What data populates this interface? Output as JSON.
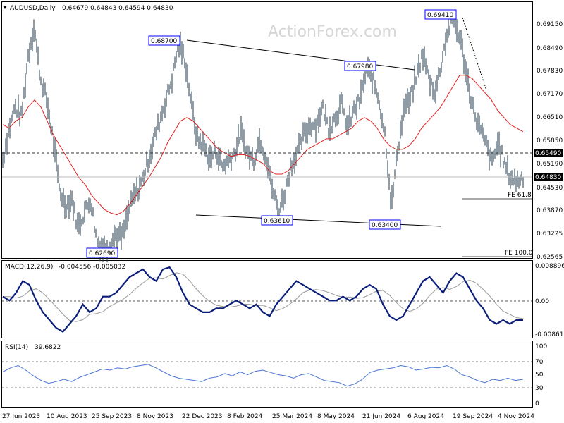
{
  "header": {
    "symbol": "AUDUSD,Daily",
    "ohlc": "0.64679 0.64843 0.64594 0.64830",
    "watermark": "ActionForex.com"
  },
  "chart_data": [
    {
      "type": "line",
      "panel": "price",
      "series": [
        {
          "values": [
            0.653,
            0.662,
            0.668,
            0.665,
            0.682,
            0.691,
            0.676,
            0.67,
            0.659,
            0.645,
            0.64,
            0.642,
            0.634,
            0.638,
            0.642,
            0.63,
            0.628,
            0.629,
            0.632,
            0.631,
            0.638,
            0.643,
            0.646,
            0.652,
            0.658,
            0.664,
            0.67,
            0.676,
            0.686,
            0.682,
            0.67,
            0.659,
            0.657,
            0.653,
            0.656,
            0.651,
            0.653,
            0.655,
            0.661,
            0.655,
            0.653,
            0.659,
            0.654,
            0.645,
            0.638,
            0.644,
            0.652,
            0.655,
            0.66,
            0.663,
            0.663,
            0.668,
            0.662,
            0.665,
            0.669,
            0.662,
            0.667,
            0.67,
            0.679,
            0.676,
            0.67,
            0.66,
            0.64,
            0.656,
            0.668,
            0.67,
            0.677,
            0.683,
            0.676,
            0.672,
            0.681,
            0.69,
            0.692,
            0.687,
            0.677,
            0.668,
            0.662,
            0.658,
            0.652,
            0.658,
            0.652,
            0.648,
            0.647,
            0.6483
          ]
        },
        {
          "values": [
            0.663,
            0.662,
            0.664,
            0.665,
            0.668,
            0.67,
            0.668,
            0.664,
            0.66,
            0.657,
            0.654,
            0.651,
            0.648,
            0.646,
            0.643,
            0.641,
            0.639,
            0.638,
            0.6375,
            0.6385,
            0.6405,
            0.643,
            0.6455,
            0.648,
            0.651,
            0.654,
            0.658,
            0.661,
            0.664,
            0.665,
            0.664,
            0.662,
            0.66,
            0.658,
            0.656,
            0.655,
            0.654,
            0.6545,
            0.6545,
            0.654,
            0.653,
            0.652,
            0.65,
            0.649,
            0.649,
            0.65,
            0.652,
            0.654,
            0.656,
            0.657,
            0.658,
            0.659,
            0.659,
            0.66,
            0.661,
            0.662,
            0.664,
            0.665,
            0.664,
            0.662,
            0.659,
            0.657,
            0.656,
            0.656,
            0.657,
            0.659,
            0.662,
            0.664,
            0.666,
            0.668,
            0.671,
            0.674,
            0.677,
            0.677,
            0.676,
            0.674,
            0.672,
            0.67,
            0.667,
            0.665,
            0.663,
            0.662,
            0.661
          ]
        }
      ],
      "ylim": [
        0.625,
        0.695
      ],
      "yticks": [
        "0.69150",
        "0.68490",
        "0.67830",
        "0.67170",
        "0.66510",
        "0.65850",
        "0.65190",
        "0.64530",
        "0.63870",
        "0.63225",
        "0.62565"
      ],
      "annotations": [
        "0.68700",
        "0.67980",
        "0.69410",
        "0.63610",
        "0.63400",
        "0.62690"
      ],
      "level_labels": [
        "0.65490",
        "0.64830"
      ],
      "fib_labels": [
        "FE 61.8",
        "FE 100.0"
      ]
    },
    {
      "type": "line",
      "panel": "macd",
      "series": [
        {
          "name": "MACD(12,26,9)",
          "values": [
            0.001,
            0.0,
            0.002,
            0.005,
            0.004,
            0.0,
            -0.003,
            -0.005,
            -0.007,
            -0.008,
            -0.006,
            -0.004,
            -0.001,
            -0.003,
            -0.002,
            0.001,
            0.001,
            0.002,
            0.004,
            0.006,
            0.007,
            0.008,
            0.006,
            0.005,
            0.008,
            0.0085,
            0.006,
            0.002,
            -0.001,
            -0.002,
            -0.003,
            -0.003,
            -0.002,
            -0.002,
            -0.001,
            0.0,
            -0.001,
            -0.002,
            -0.001,
            -0.003,
            -0.004,
            -0.001,
            0.001,
            0.003,
            0.005,
            0.004,
            0.003,
            0.002,
            0.001,
            0.0,
            0.0,
            0.001,
            0.0,
            0.001,
            0.003,
            0.004,
            0.003,
            -0.001,
            -0.004,
            -0.005,
            -0.004,
            -0.001,
            0.002,
            0.005,
            0.006,
            0.004,
            0.002,
            0.005,
            0.007,
            0.006,
            0.003,
            0.0,
            -0.002,
            -0.005,
            -0.006,
            -0.005,
            -0.006,
            -0.005,
            -0.005
          ]
        }
      ],
      "yticks": [
        "0.008896",
        "0.00",
        "-0.008612"
      ],
      "header_values": "-0.004556 -0.005032"
    },
    {
      "type": "line",
      "panel": "rsi",
      "series": [
        {
          "name": "RSI(14)",
          "values": [
            55,
            62,
            66,
            58,
            48,
            40,
            35,
            38,
            42,
            38,
            45,
            50,
            55,
            60,
            58,
            62,
            60,
            64,
            66,
            68,
            62,
            55,
            48,
            44,
            42,
            40,
            38,
            44,
            46,
            52,
            48,
            55,
            50,
            56,
            58,
            54,
            50,
            48,
            44,
            50,
            52,
            46,
            40,
            38,
            36,
            30,
            34,
            42,
            54,
            58,
            60,
            62,
            66,
            64,
            58,
            60,
            63,
            62,
            66,
            60,
            50,
            46,
            40,
            36,
            42,
            40,
            44,
            40,
            42
          ]
        }
      ],
      "ylim": [
        0,
        100
      ],
      "yticks": [
        "100",
        "70",
        "50",
        "30",
        "0"
      ],
      "header_values": "39.6822"
    }
  ],
  "x_axis": {
    "ticks": [
      "27 Jun 2023",
      "10 Aug 2023",
      "25 Sep 2023",
      "8 Nov 2023",
      "22 Dec 2023",
      "8 Feb 2024",
      "25 Mar 2024",
      "8 May 2024",
      "21 Jun 2024",
      "6 Aug 2024",
      "19 Sep 2024",
      "4 Nov 2024"
    ]
  },
  "colors": {
    "bars": "#1f3a4d",
    "ma": "#e02020",
    "macd": "#0b1f7a",
    "signal": "#9a9a9a",
    "rsi": "#4a74d6",
    "label_border": "#0000ff"
  }
}
